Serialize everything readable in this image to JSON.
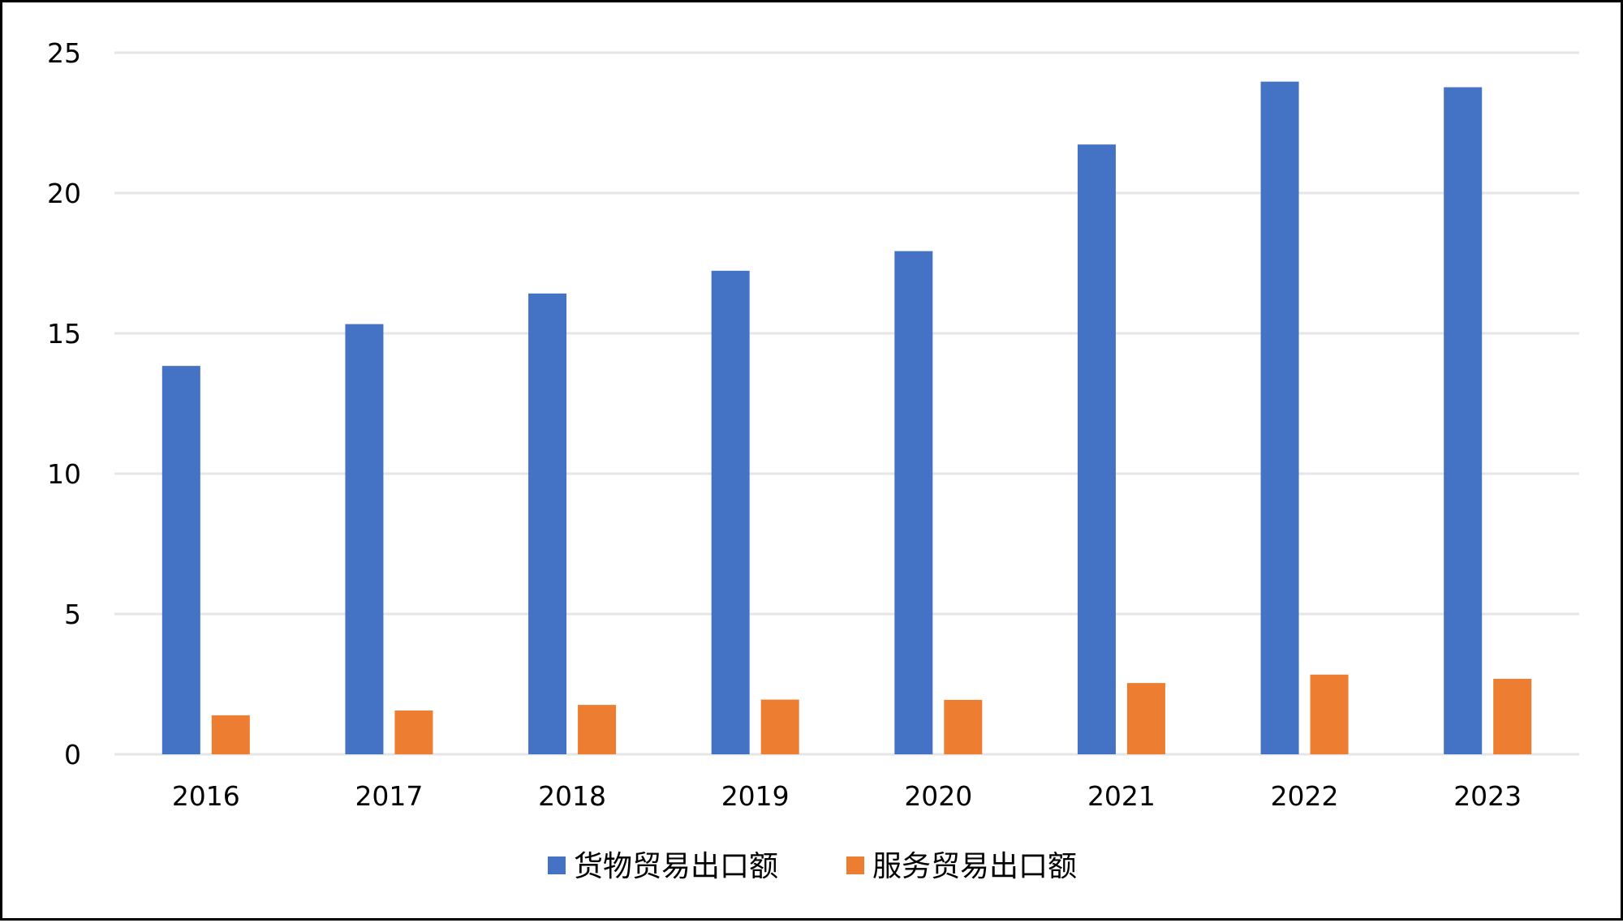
{
  "chart_data": {
    "type": "bar",
    "categories": [
      "2016",
      "2017",
      "2018",
      "2019",
      "2020",
      "2021",
      "2022",
      "2023"
    ],
    "series": [
      {
        "name": "货物贸易出口额",
        "values": [
          13.84,
          15.33,
          16.42,
          17.23,
          17.93,
          21.73,
          23.97,
          23.77
        ],
        "color": "#4472C4"
      },
      {
        "name": "服务贸易出口额",
        "values": [
          1.39,
          1.56,
          1.76,
          1.95,
          1.94,
          2.54,
          2.84,
          2.69
        ],
        "color": "#ED7D31"
      }
    ],
    "ylim": [
      0,
      25
    ],
    "yticks": [
      0,
      5,
      10,
      15,
      20,
      25
    ],
    "grid": true,
    "gridline_color": "#E6E6E6",
    "legend": "bottom-center",
    "title": "",
    "xlabel": "",
    "ylabel": ""
  }
}
